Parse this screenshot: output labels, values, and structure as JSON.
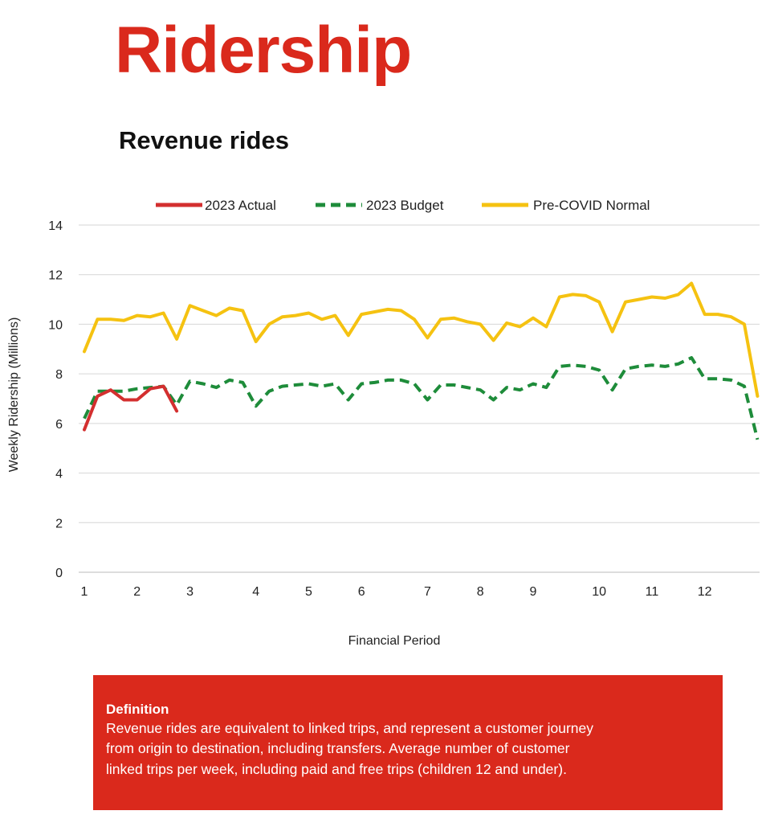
{
  "page": {
    "title": "Ridership",
    "section_title": "Revenue rides"
  },
  "chart_data": {
    "type": "line",
    "title": "Revenue rides",
    "xlabel": "Financial Period",
    "ylabel": "Weekly Ridership (Millions)",
    "ylim": [
      0,
      14
    ],
    "yticks": [
      0,
      2,
      4,
      6,
      8,
      10,
      12,
      14
    ],
    "grid": true,
    "legend_position": "top",
    "x_ticks": [
      {
        "label": "1",
        "week": 1
      },
      {
        "label": "2",
        "week": 5
      },
      {
        "label": "3",
        "week": 9
      },
      {
        "label": "4",
        "week": 14
      },
      {
        "label": "5",
        "week": 18
      },
      {
        "label": "6",
        "week": 22
      },
      {
        "label": "7",
        "week": 27
      },
      {
        "label": "8",
        "week": 31
      },
      {
        "label": "9",
        "week": 35
      },
      {
        "label": "10",
        "week": 40
      },
      {
        "label": "11",
        "week": 44
      },
      {
        "label": "12",
        "week": 48
      }
    ],
    "series": [
      {
        "name": "2023 Actual",
        "color": "#d32f2f",
        "style": "solid",
        "values": [
          5.75,
          7.1,
          7.35,
          6.95,
          6.95,
          7.4,
          7.5,
          6.5
        ]
      },
      {
        "name": "2023 Budget",
        "color": "#1e8c3a",
        "style": "dashed",
        "values": [
          6.2,
          7.3,
          7.3,
          7.3,
          7.4,
          7.45,
          7.5,
          6.75,
          7.7,
          7.6,
          7.45,
          7.75,
          7.65,
          6.7,
          7.3,
          7.5,
          7.55,
          7.6,
          7.5,
          7.6,
          6.95,
          7.6,
          7.65,
          7.75,
          7.75,
          7.6,
          6.95,
          7.55,
          7.55,
          7.45,
          7.35,
          6.95,
          7.45,
          7.35,
          7.6,
          7.45,
          8.3,
          8.35,
          8.3,
          8.15,
          7.35,
          8.2,
          8.3,
          8.35,
          8.3,
          8.4,
          8.65,
          7.8,
          7.8,
          7.75,
          7.5,
          5.35
        ]
      },
      {
        "name": "Pre-COVID Normal",
        "color": "#f5c211",
        "style": "solid",
        "values": [
          8.9,
          10.2,
          10.2,
          10.15,
          10.35,
          10.3,
          10.45,
          9.4,
          10.75,
          10.55,
          10.35,
          10.65,
          10.55,
          9.3,
          10.0,
          10.3,
          10.35,
          10.45,
          10.2,
          10.35,
          9.55,
          10.4,
          10.5,
          10.6,
          10.55,
          10.2,
          9.45,
          10.2,
          10.25,
          10.1,
          10.0,
          9.35,
          10.05,
          9.9,
          10.25,
          9.9,
          11.1,
          11.2,
          11.15,
          10.9,
          9.7,
          10.9,
          11.0,
          11.1,
          11.05,
          11.2,
          11.65,
          10.4,
          10.4,
          10.3,
          10.0,
          7.1
        ]
      }
    ]
  },
  "definition": {
    "heading": "Definition",
    "lines": [
      "Revenue rides are equivalent to linked trips, and represent a customer journey",
      "from origin to destination, including transfers. Average number of customer",
      "linked trips per week, including paid and free trips (children 12 and under)."
    ]
  }
}
